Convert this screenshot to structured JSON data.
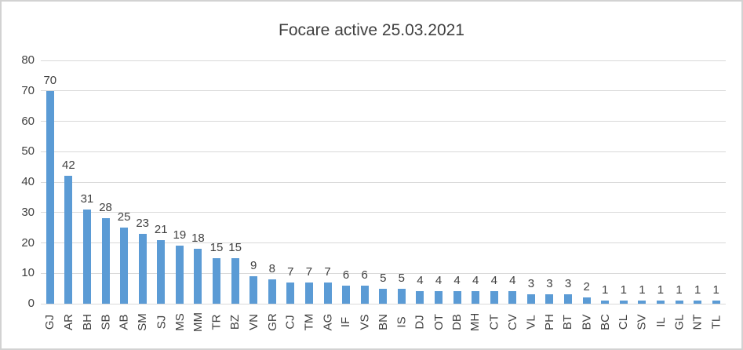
{
  "chart_data": {
    "type": "bar",
    "title": "Focare active 25.03.2021",
    "categories": [
      "GJ",
      "AR",
      "BH",
      "SB",
      "AB",
      "SM",
      "SJ",
      "MS",
      "MM",
      "TR",
      "BZ",
      "VN",
      "GR",
      "CJ",
      "TM",
      "AG",
      "IF",
      "VS",
      "BN",
      "IS",
      "DJ",
      "OT",
      "DB",
      "MH",
      "CT",
      "CV",
      "VL",
      "PH",
      "BT",
      "BV",
      "BC",
      "CL",
      "SV",
      "IL",
      "GL",
      "NT",
      "TL"
    ],
    "values": [
      70,
      42,
      31,
      28,
      25,
      23,
      21,
      19,
      18,
      15,
      15,
      9,
      8,
      7,
      7,
      7,
      6,
      6,
      5,
      5,
      4,
      4,
      4,
      4,
      4,
      4,
      3,
      3,
      3,
      2,
      1,
      1,
      1,
      1,
      1,
      1,
      1
    ],
    "xlabel": "",
    "ylabel": "",
    "ylim": [
      0,
      80
    ],
    "yticks": [
      0,
      10,
      20,
      30,
      40,
      50,
      60,
      70,
      80
    ],
    "grid": true,
    "legend": false,
    "data_labels": true,
    "x_label_rotation_degrees": 90
  },
  "colors": {
    "bar": "#5B9BD5",
    "gridline": "#D9D9D9",
    "axis_line": "#D9D9D9",
    "text": "#404040",
    "frame_border": "#D2D2D2",
    "background": "#FFFFFF"
  }
}
